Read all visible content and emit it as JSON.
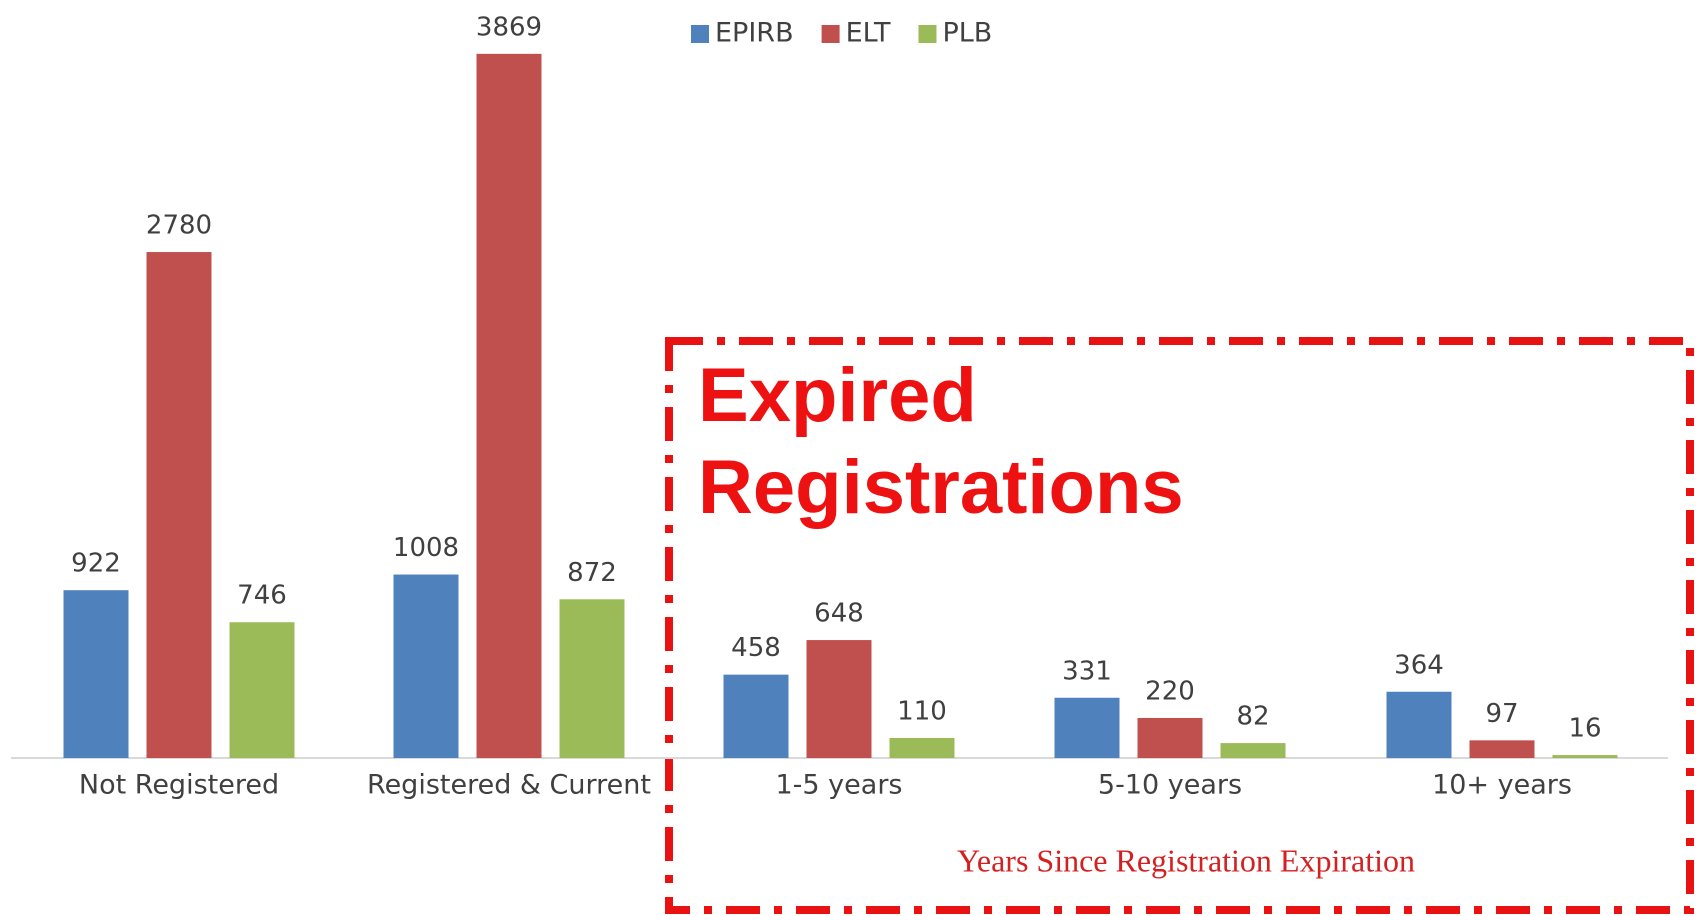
{
  "chart_data": {
    "type": "bar",
    "categories": [
      "Not Registered",
      "Registered & Current",
      "1-5 years",
      "5-10 years",
      "10+ years"
    ],
    "series": [
      {
        "name": "EPIRB",
        "color": "#4f81bd",
        "values": [
          922,
          1008,
          458,
          331,
          364
        ]
      },
      {
        "name": "ELT",
        "color": "#c0504d",
        "values": [
          2780,
          3869,
          648,
          220,
          97
        ]
      },
      {
        "name": "PLB",
        "color": "#9bbb59",
        "values": [
          746,
          872,
          110,
          82,
          16
        ]
      }
    ],
    "legend": "top",
    "annotations": [
      "Expired Registrations",
      "Years Since Registration Expiration"
    ]
  }
}
